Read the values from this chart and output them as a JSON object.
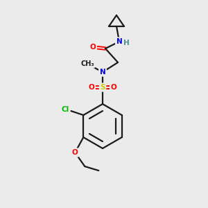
{
  "bg_color": "#ebebeb",
  "bond_color": "#1a1a1a",
  "atom_colors": {
    "O": "#ff0000",
    "N": "#0000ee",
    "H": "#4a8f8f",
    "S": "#cccc00",
    "Cl": "#00bb00",
    "C": "#1a1a1a"
  },
  "figsize": [
    3.0,
    3.0
  ],
  "dpi": 100,
  "lw": 1.6,
  "fs": 7.5
}
